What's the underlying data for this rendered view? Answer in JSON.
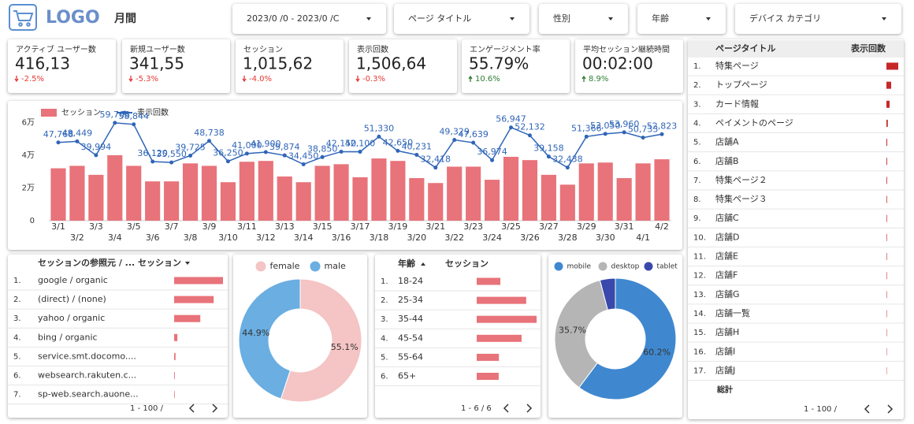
{
  "header": {
    "logo": "LOGO",
    "period": "月間"
  },
  "filters": [
    "2023/0 /0 - 2023/0 /C",
    "ページ タイトル",
    "性別",
    "年齢",
    "デバイス カテゴリ"
  ],
  "kpis": [
    {
      "label": "アクティブ ユーザー数",
      "value": "416,13",
      "change": "-2.5%"
    },
    {
      "label": "新規ユーザー数",
      "value": "341,55",
      "change": "-5.3%"
    },
    {
      "label": "セッション",
      "value": "1,015,62",
      "change": "-4.0%"
    },
    {
      "label": "表示回数",
      "value": "1,506,64",
      "change": "-0.3%"
    },
    {
      "label": "エンゲージメント率",
      "value": "55.79%",
      "change": "10.6%"
    },
    {
      "label": "平均セッション継続時間",
      "value": "00:02:00",
      "change": "8.9%"
    }
  ],
  "referrer_table": {
    "columns": [
      "セッションの参照元 / ...",
      "セッション"
    ],
    "rows": [
      {
        "rank": "1.",
        "name": "google / organic",
        "value": 420000
      },
      {
        "rank": "2.",
        "name": "(direct) / (none)",
        "value": 340000
      },
      {
        "rank": "3.",
        "name": "yahoo / organic",
        "value": 225000
      },
      {
        "rank": "4.",
        "name": "bing / organic",
        "value": 28000
      },
      {
        "rank": "5.",
        "name": "service.smt.docomo....",
        "value": 12000
      },
      {
        "rank": "6.",
        "name": "websearch.rakuten.c...",
        "value": 6000
      },
      {
        "rank": "7.",
        "name": "sp-web.search.auone...",
        "value": 5000
      }
    ],
    "footer": "1 - 100 /"
  },
  "age_table": {
    "columns": [
      "年齢",
      "セッション"
    ],
    "rows": [
      {
        "rank": "1.",
        "name": "18-24",
        "value": 98000
      },
      {
        "rank": "2.",
        "name": "25-34",
        "value": 205000
      },
      {
        "rank": "3.",
        "name": "35-44",
        "value": 248000
      },
      {
        "rank": "4.",
        "name": "45-54",
        "value": 186000
      },
      {
        "rank": "5.",
        "name": "55-64",
        "value": 92000
      },
      {
        "rank": "6.",
        "name": "65+",
        "value": 91000
      }
    ],
    "footer": "1 - 6 / 6"
  },
  "page_table": {
    "columns": [
      "ページタイトル",
      "表示回数"
    ],
    "rows": [
      {
        "rank": "1.",
        "name": "特集ページ",
        "value": 120000
      },
      {
        "rank": "2.",
        "name": "トップページ",
        "value": 48000
      },
      {
        "rank": "3.",
        "name": "カード情報",
        "value": 32000
      },
      {
        "rank": "4.",
        "name": "ペイメントのページ",
        "value": 14000
      },
      {
        "rank": "5.",
        "name": "店舗A",
        "value": 8000
      },
      {
        "rank": "6.",
        "name": "店舗B",
        "value": 7000
      },
      {
        "rank": "7.",
        "name": "特集ページ２",
        "value": 6500
      },
      {
        "rank": "8.",
        "name": "特集ページ３",
        "value": 6000
      },
      {
        "rank": "9.",
        "name": "店舗C",
        "value": 5500
      },
      {
        "rank": "10.",
        "name": "店舗D",
        "value": 5000
      },
      {
        "rank": "11.",
        "name": "店舗E",
        "value": 4800
      },
      {
        "rank": "12.",
        "name": "店舗F",
        "value": 4500
      },
      {
        "rank": "13.",
        "name": "店舗G",
        "value": 4200
      },
      {
        "rank": "14.",
        "name": "店舗一覧",
        "value": 4000
      },
      {
        "rank": "15.",
        "name": "店舗H",
        "value": 3800
      },
      {
        "rank": "16.",
        "name": "店舗I",
        "value": 3500
      },
      {
        "rank": "17.",
        "name": "店舗J",
        "value": 3200
      }
    ],
    "total": "総計",
    "footer": "1 - 100 /"
  },
  "chart_data": [
    {
      "type": "combo",
      "legend": "top-left",
      "categories": [
        "3/1",
        "3/2",
        "3/3",
        "3/4",
        "3/5",
        "3/6",
        "3/7",
        "3/8",
        "3/9",
        "3/10",
        "3/11",
        "3/12",
        "3/13",
        "3/14",
        "3/15",
        "3/16",
        "3/17",
        "3/18",
        "3/19",
        "3/20",
        "3/21",
        "3/22",
        "3/23",
        "3/24",
        "3/25",
        "3/26",
        "3/27",
        "3/28",
        "3/29",
        "3/30",
        "3/31",
        "4/1",
        "4/2"
      ],
      "ylim": [
        0,
        65000
      ],
      "yticks": [
        0,
        {
          "value": 20000,
          "label": "2万"
        },
        {
          "value": 40000,
          "label": "4万"
        },
        {
          "value": 60000,
          "label": "6万"
        }
      ],
      "grid": false,
      "series": [
        {
          "name": "セッション",
          "type": "bar",
          "color": "#e8737a",
          "values": [
            32000,
            33500,
            28000,
            40000,
            33500,
            24000,
            24000,
            35000,
            33500,
            23500,
            36000,
            36500,
            27000,
            23500,
            33500,
            34500,
            26500,
            38000,
            36500,
            26000,
            23000,
            33000,
            33000,
            25000,
            39000,
            37000,
            28000,
            22000,
            35000,
            35500,
            26000,
            35000,
            37500
          ]
        },
        {
          "name": "表示回数",
          "type": "line",
          "color": "#2f65b8",
          "values": [
            47768,
            48449,
            39994,
            59768,
            58844,
            36120,
            35550,
            39725,
            48738,
            36250,
            41000,
            41900,
            39874,
            34450,
            38850,
            42150,
            42100,
            51330,
            42650,
            40231,
            32418,
            49329,
            47639,
            36974,
            56947,
            52132,
            39158,
            32438,
            51366,
            53050,
            53960,
            50733,
            52823
          ],
          "value_labels": [
            "47,768",
            "48,449",
            "39,994",
            "59,768",
            "58,844",
            "36,120",
            "35,550",
            "39,725",
            "48,738",
            "36,250",
            "41,000",
            "41,900",
            "39,874",
            "34,450",
            "38,850",
            "42,150",
            "42,100",
            "51,330",
            "42,650",
            "40,231",
            "32,418",
            "49,329",
            "47,639",
            "36,974",
            "56,947",
            "52,132",
            "39,158",
            "32,438",
            "51,366",
            "53,050",
            "53,960",
            "50,733",
            "52,823"
          ]
        }
      ]
    },
    {
      "type": "donut",
      "legend": "top",
      "categories": [
        "female",
        "male"
      ],
      "values": [
        55.1,
        44.9
      ],
      "value_labels": [
        "55.1%",
        "44.9%"
      ],
      "colors": [
        "#f5c4c4",
        "#6aaee2"
      ]
    },
    {
      "type": "donut",
      "legend": "top",
      "categories": [
        "mobile",
        "desktop",
        "tablet"
      ],
      "values": [
        60.2,
        35.7,
        4.1
      ],
      "value_labels": [
        "60.2%",
        "35.7%",
        null
      ],
      "colors": [
        "#3f88d0",
        "#b5b5b5",
        "#3949ab"
      ]
    }
  ]
}
